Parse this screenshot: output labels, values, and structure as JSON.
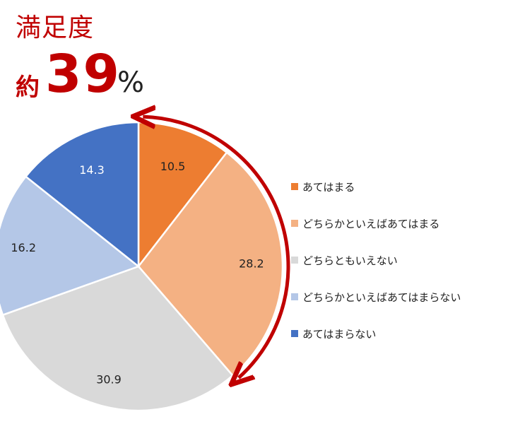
{
  "title": "満足度",
  "headline": {
    "prefix": "約",
    "value": "39",
    "unit": "%"
  },
  "chart_data": {
    "type": "pie",
    "title": "満足度",
    "categories": [
      "あてはまる",
      "どちらかといえばあてはまる",
      "どちらともいえない",
      "どちらかといえばあてはまらない",
      "あてはまらない"
    ],
    "values": [
      10.5,
      28.2,
      30.9,
      16.2,
      14.3
    ],
    "labels": [
      "10.5",
      "28.2",
      "30.9",
      "16.2",
      "14.3"
    ],
    "colors": [
      "#ed7d31",
      "#f4b183",
      "#d9d9d9",
      "#b4c7e7",
      "#4472c4"
    ],
    "label_colors": [
      "#222222",
      "#222222",
      "#222222",
      "#222222",
      "#ffffff"
    ],
    "start_angle": "12 o'clock, clockwise",
    "legend": "right",
    "annotation": {
      "type": "arc-arrow",
      "color": "#c00000",
      "spans_slices": [
        0,
        1
      ]
    }
  }
}
